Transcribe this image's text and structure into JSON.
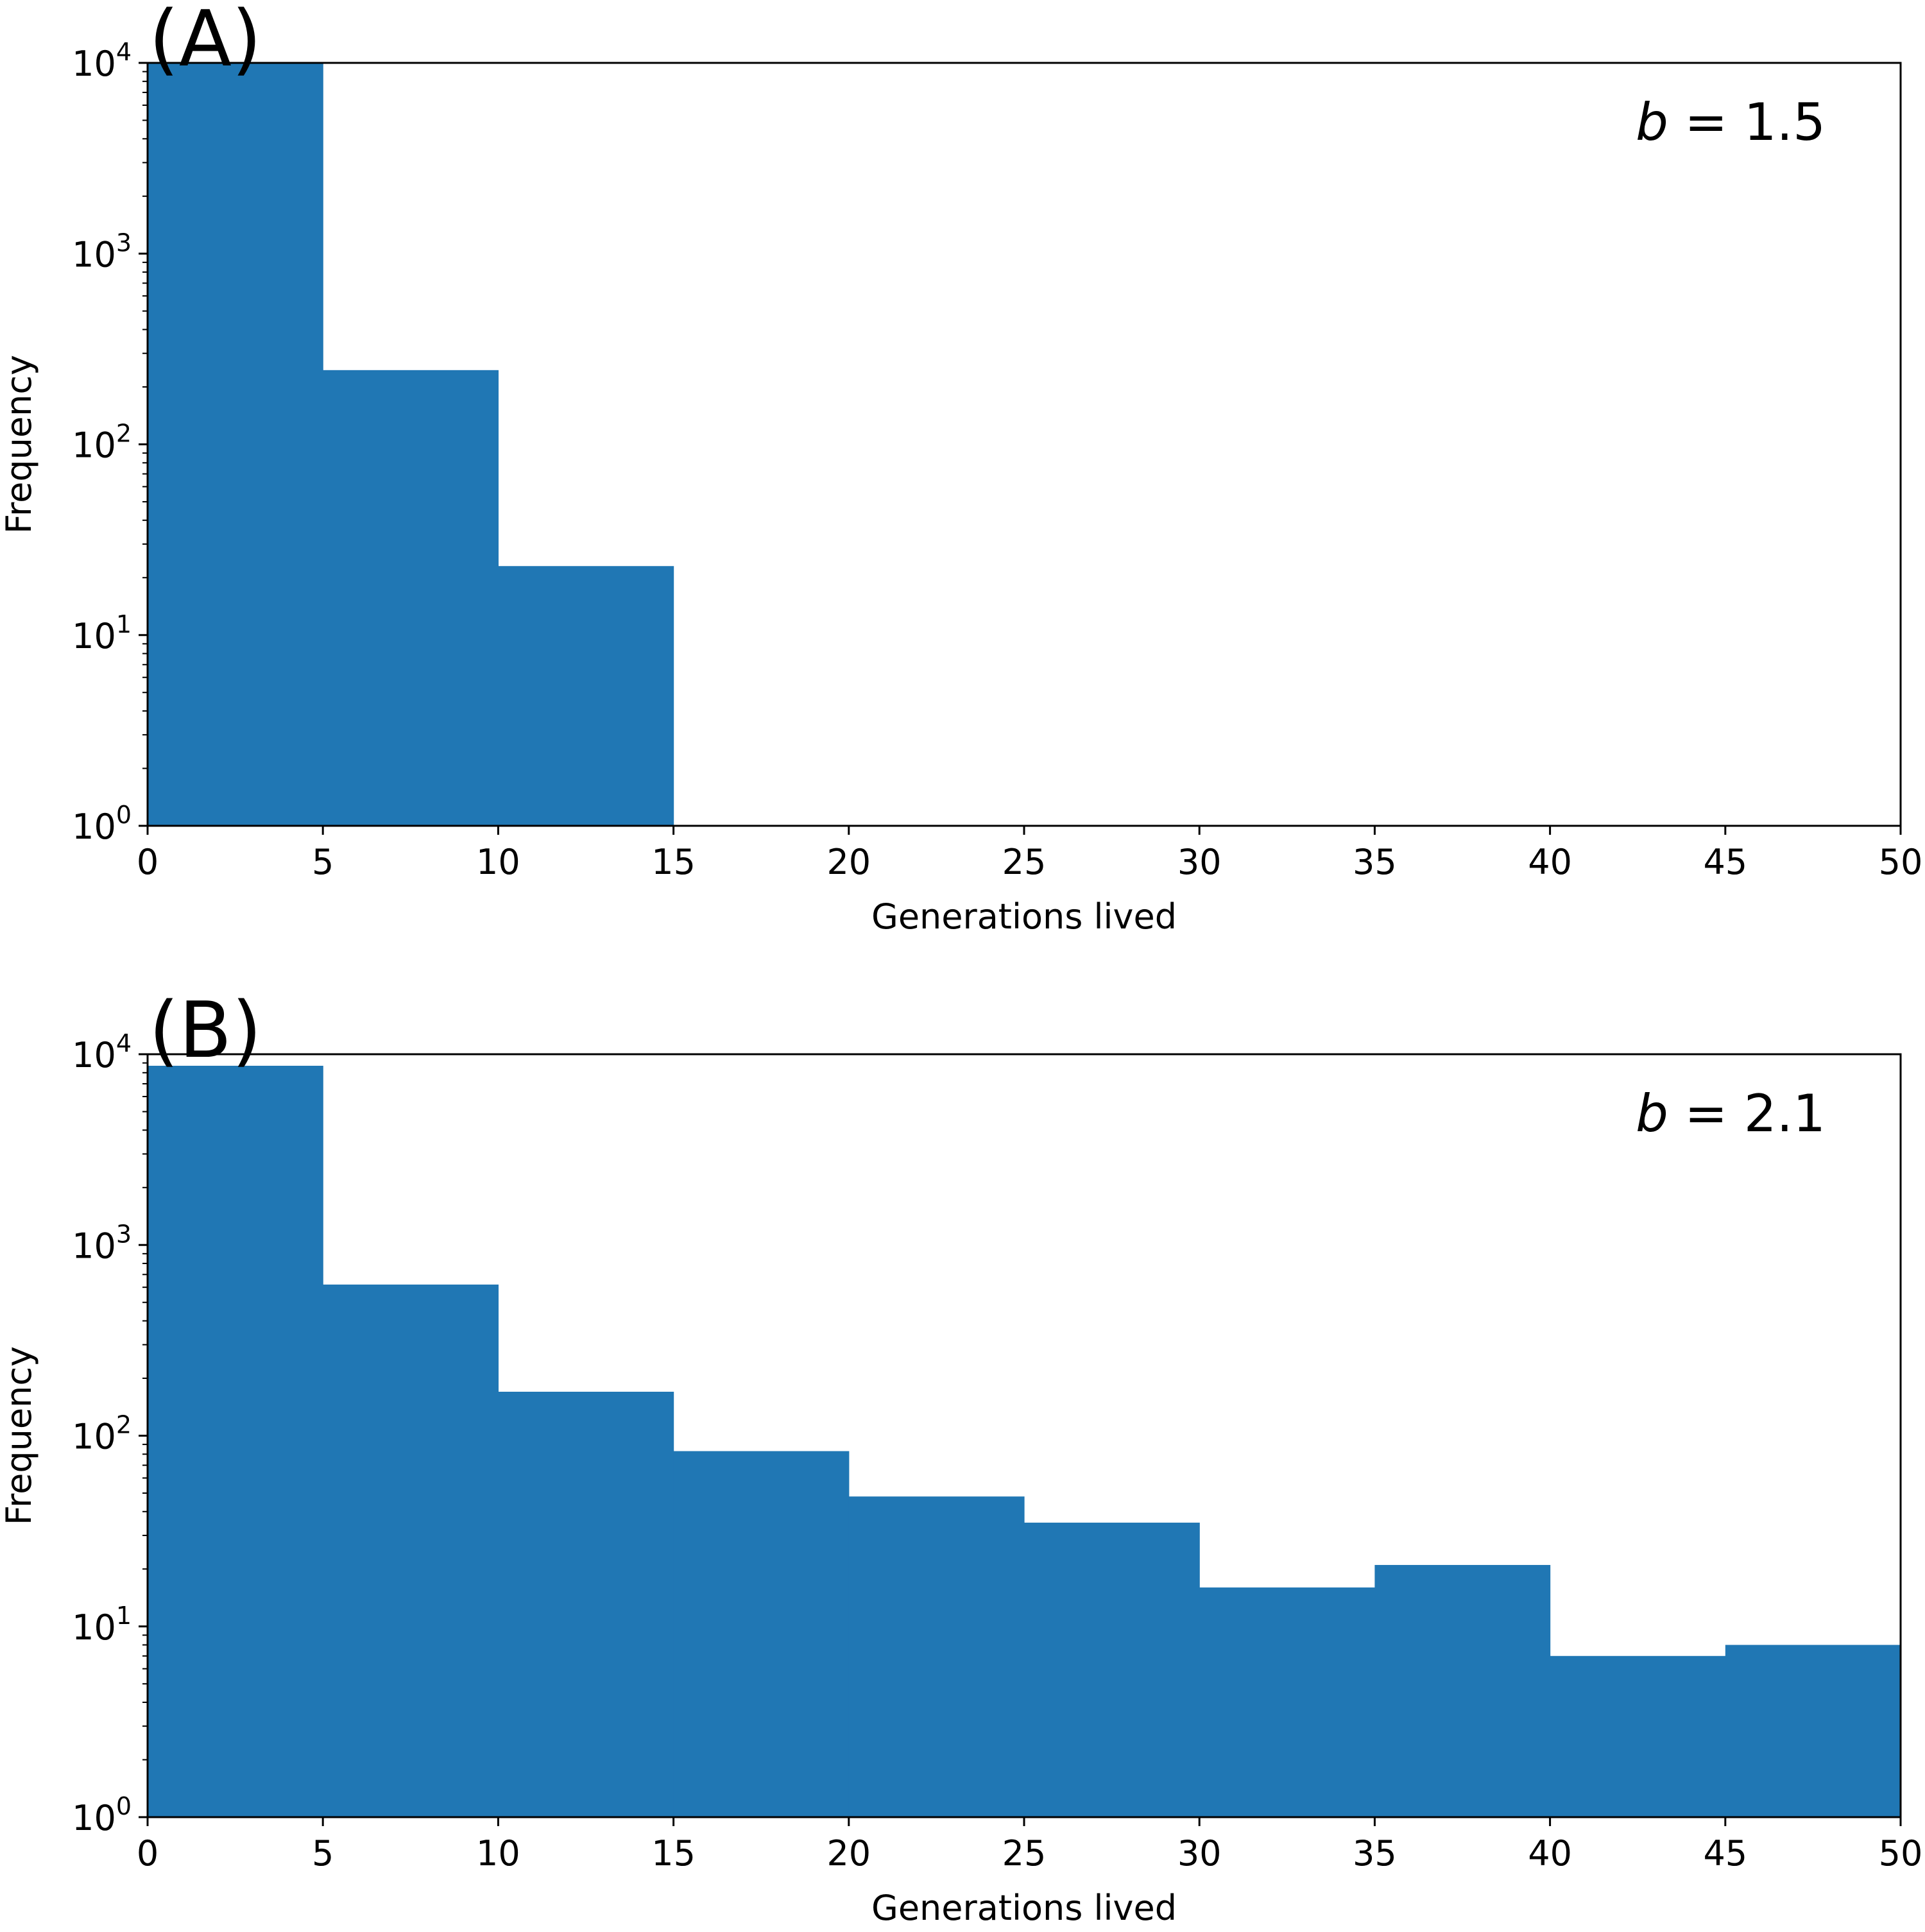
{
  "chart_data": [
    {
      "type": "bar",
      "panel_label": "(A)",
      "annotation": {
        "symbol": "b",
        "text": " = 1.5"
      },
      "xlabel": "Generations lived",
      "ylabel": "Frequency",
      "yscale": "log",
      "xlim": [
        0,
        50
      ],
      "ylim": [
        1,
        10000
      ],
      "bin_edges": [
        0,
        5,
        10,
        15,
        20,
        25,
        30,
        35,
        40,
        45,
        50
      ],
      "values": [
        10000,
        245,
        23,
        0,
        0,
        0,
        0,
        0,
        0,
        0
      ],
      "xticks": [
        "0",
        "5",
        "10",
        "15",
        "20",
        "25",
        "30",
        "35",
        "40",
        "45",
        "50"
      ],
      "yticks": [
        {
          "value": 1,
          "base": "10",
          "exp": "0"
        },
        {
          "value": 10,
          "base": "10",
          "exp": "1"
        },
        {
          "value": 100,
          "base": "10",
          "exp": "2"
        },
        {
          "value": 1000,
          "base": "10",
          "exp": "3"
        },
        {
          "value": 10000,
          "base": "10",
          "exp": "4"
        }
      ],
      "color": "#2077b4"
    },
    {
      "type": "bar",
      "panel_label": "(B)",
      "annotation": {
        "symbol": "b",
        "text": " = 2.1"
      },
      "xlabel": "Generations lived",
      "ylabel": "Frequency",
      "yscale": "log",
      "xlim": [
        0,
        50
      ],
      "ylim": [
        1,
        10000
      ],
      "bin_edges": [
        0,
        5,
        10,
        15,
        20,
        25,
        30,
        35,
        40,
        45,
        50
      ],
      "values": [
        8700,
        620,
        170,
        83,
        48,
        35,
        16,
        21,
        7,
        8
      ],
      "xticks": [
        "0",
        "5",
        "10",
        "15",
        "20",
        "25",
        "30",
        "35",
        "40",
        "45",
        "50"
      ],
      "yticks": [
        {
          "value": 1,
          "base": "10",
          "exp": "0"
        },
        {
          "value": 10,
          "base": "10",
          "exp": "1"
        },
        {
          "value": 100,
          "base": "10",
          "exp": "2"
        },
        {
          "value": 1000,
          "base": "10",
          "exp": "3"
        },
        {
          "value": 10000,
          "base": "10",
          "exp": "4"
        }
      ],
      "color": "#2077b4"
    }
  ]
}
